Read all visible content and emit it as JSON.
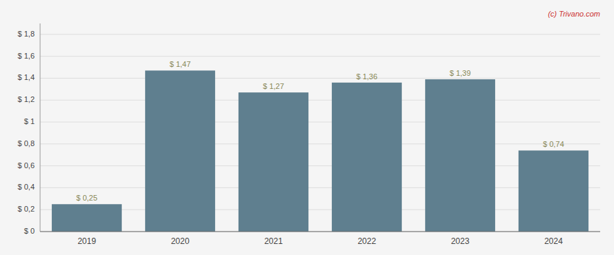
{
  "chart_data": {
    "type": "bar",
    "categories": [
      "2019",
      "2020",
      "2021",
      "2022",
      "2023",
      "2024"
    ],
    "values": [
      0.25,
      1.47,
      1.27,
      1.36,
      1.39,
      0.74
    ],
    "value_labels": [
      "$ 0,25",
      "$ 1,47",
      "$ 1,27",
      "$ 1,36",
      "$ 1,39",
      "$ 0,74"
    ],
    "data_labels": true,
    "color": "#5f7f8f",
    "ylim": [
      0,
      1.9
    ],
    "yticks": [
      {
        "value": 0.0,
        "label": "$ 0"
      },
      {
        "value": 0.2,
        "label": "$ 0,2"
      },
      {
        "value": 0.4,
        "label": "$ 0,4"
      },
      {
        "value": 0.6,
        "label": "$ 0,6"
      },
      {
        "value": 0.8,
        "label": "$ 0,8"
      },
      {
        "value": 1.0,
        "label": "$ 1"
      },
      {
        "value": 1.2,
        "label": "$ 1,2"
      },
      {
        "value": 1.4,
        "label": "$ 1,4"
      },
      {
        "value": 1.6,
        "label": "$ 1,6"
      },
      {
        "value": 1.8,
        "label": "$ 1,8"
      }
    ],
    "grid": true,
    "annotations": [
      {
        "text": "(c) Trivano.com",
        "color": "#cc3333"
      }
    ]
  }
}
